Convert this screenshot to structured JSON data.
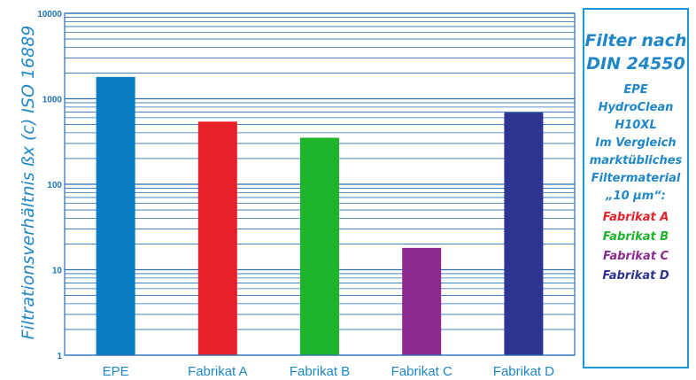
{
  "chart_data": {
    "type": "bar",
    "ylabel": "Filtrationsverhältnis ßx (c) ISO 16889",
    "yscale": "log",
    "ylim": [
      1,
      10000
    ],
    "yticks": [
      "1",
      "10",
      "100",
      "1000",
      "10000"
    ],
    "categories": [
      "EPE",
      "Fabrikat A",
      "Fabrikat B",
      "Fabrikat C",
      "Fabrikat D"
    ],
    "values": [
      1800,
      540,
      350,
      18,
      690
    ],
    "colors": [
      "#0a7cc4",
      "#e8202a",
      "#1eb52d",
      "#8c2a8e",
      "#2e3491"
    ],
    "grid": true
  },
  "legend": {
    "title_lines": [
      "Filter nach",
      "DIN 24550"
    ],
    "desc_lines": [
      "EPE",
      "HydroClean",
      "H10XL",
      "Im Vergleich",
      "marktübliches",
      "Filtermaterial",
      "„10 µm“:"
    ],
    "entries": [
      {
        "label": "Fabrikat A",
        "color": "#e8202a"
      },
      {
        "label": "Fabrikat B",
        "color": "#1eb52d"
      },
      {
        "label": "Fabrikat C",
        "color": "#8c2a8e"
      },
      {
        "label": "Fabrikat D",
        "color": "#2e3491"
      }
    ]
  }
}
